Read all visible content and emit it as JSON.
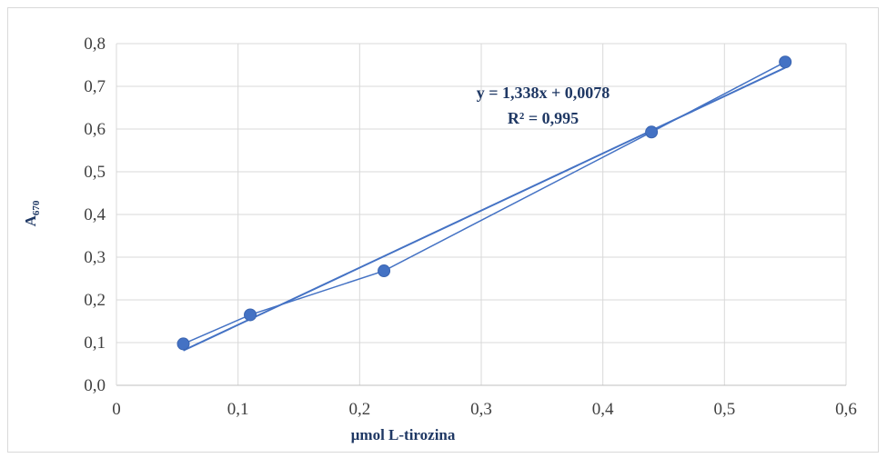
{
  "chart_data": {
    "type": "scatter",
    "xlabel": "µmol L-tirozina",
    "ylabel_main": "A",
    "ylabel_sub": "670",
    "xlim": [
      0,
      0.6
    ],
    "ylim": [
      0,
      0.8
    ],
    "xticks": [
      "0",
      "0,1",
      "0,2",
      "0,3",
      "0,4",
      "0,5",
      "0,6"
    ],
    "yticks": [
      "0,0",
      "0,1",
      "0,2",
      "0,3",
      "0,4",
      "0,5",
      "0,6",
      "0,7",
      "0,8"
    ],
    "grid": true,
    "series": [
      {
        "x": [
          0.055,
          0.11,
          0.22,
          0.44,
          0.55
        ],
        "y": [
          0.097,
          0.165,
          0.268,
          0.593,
          0.757
        ],
        "color": "#4472c4"
      }
    ],
    "trendline": {
      "type": "linear",
      "slope": 1.338,
      "intercept": 0.0078,
      "x_range": [
        0.055,
        0.55
      ],
      "color": "#4472c4"
    },
    "annotations": {
      "equation": "y = 1,338x + 0,0078",
      "r_squared": "R² = 0,995"
    }
  }
}
